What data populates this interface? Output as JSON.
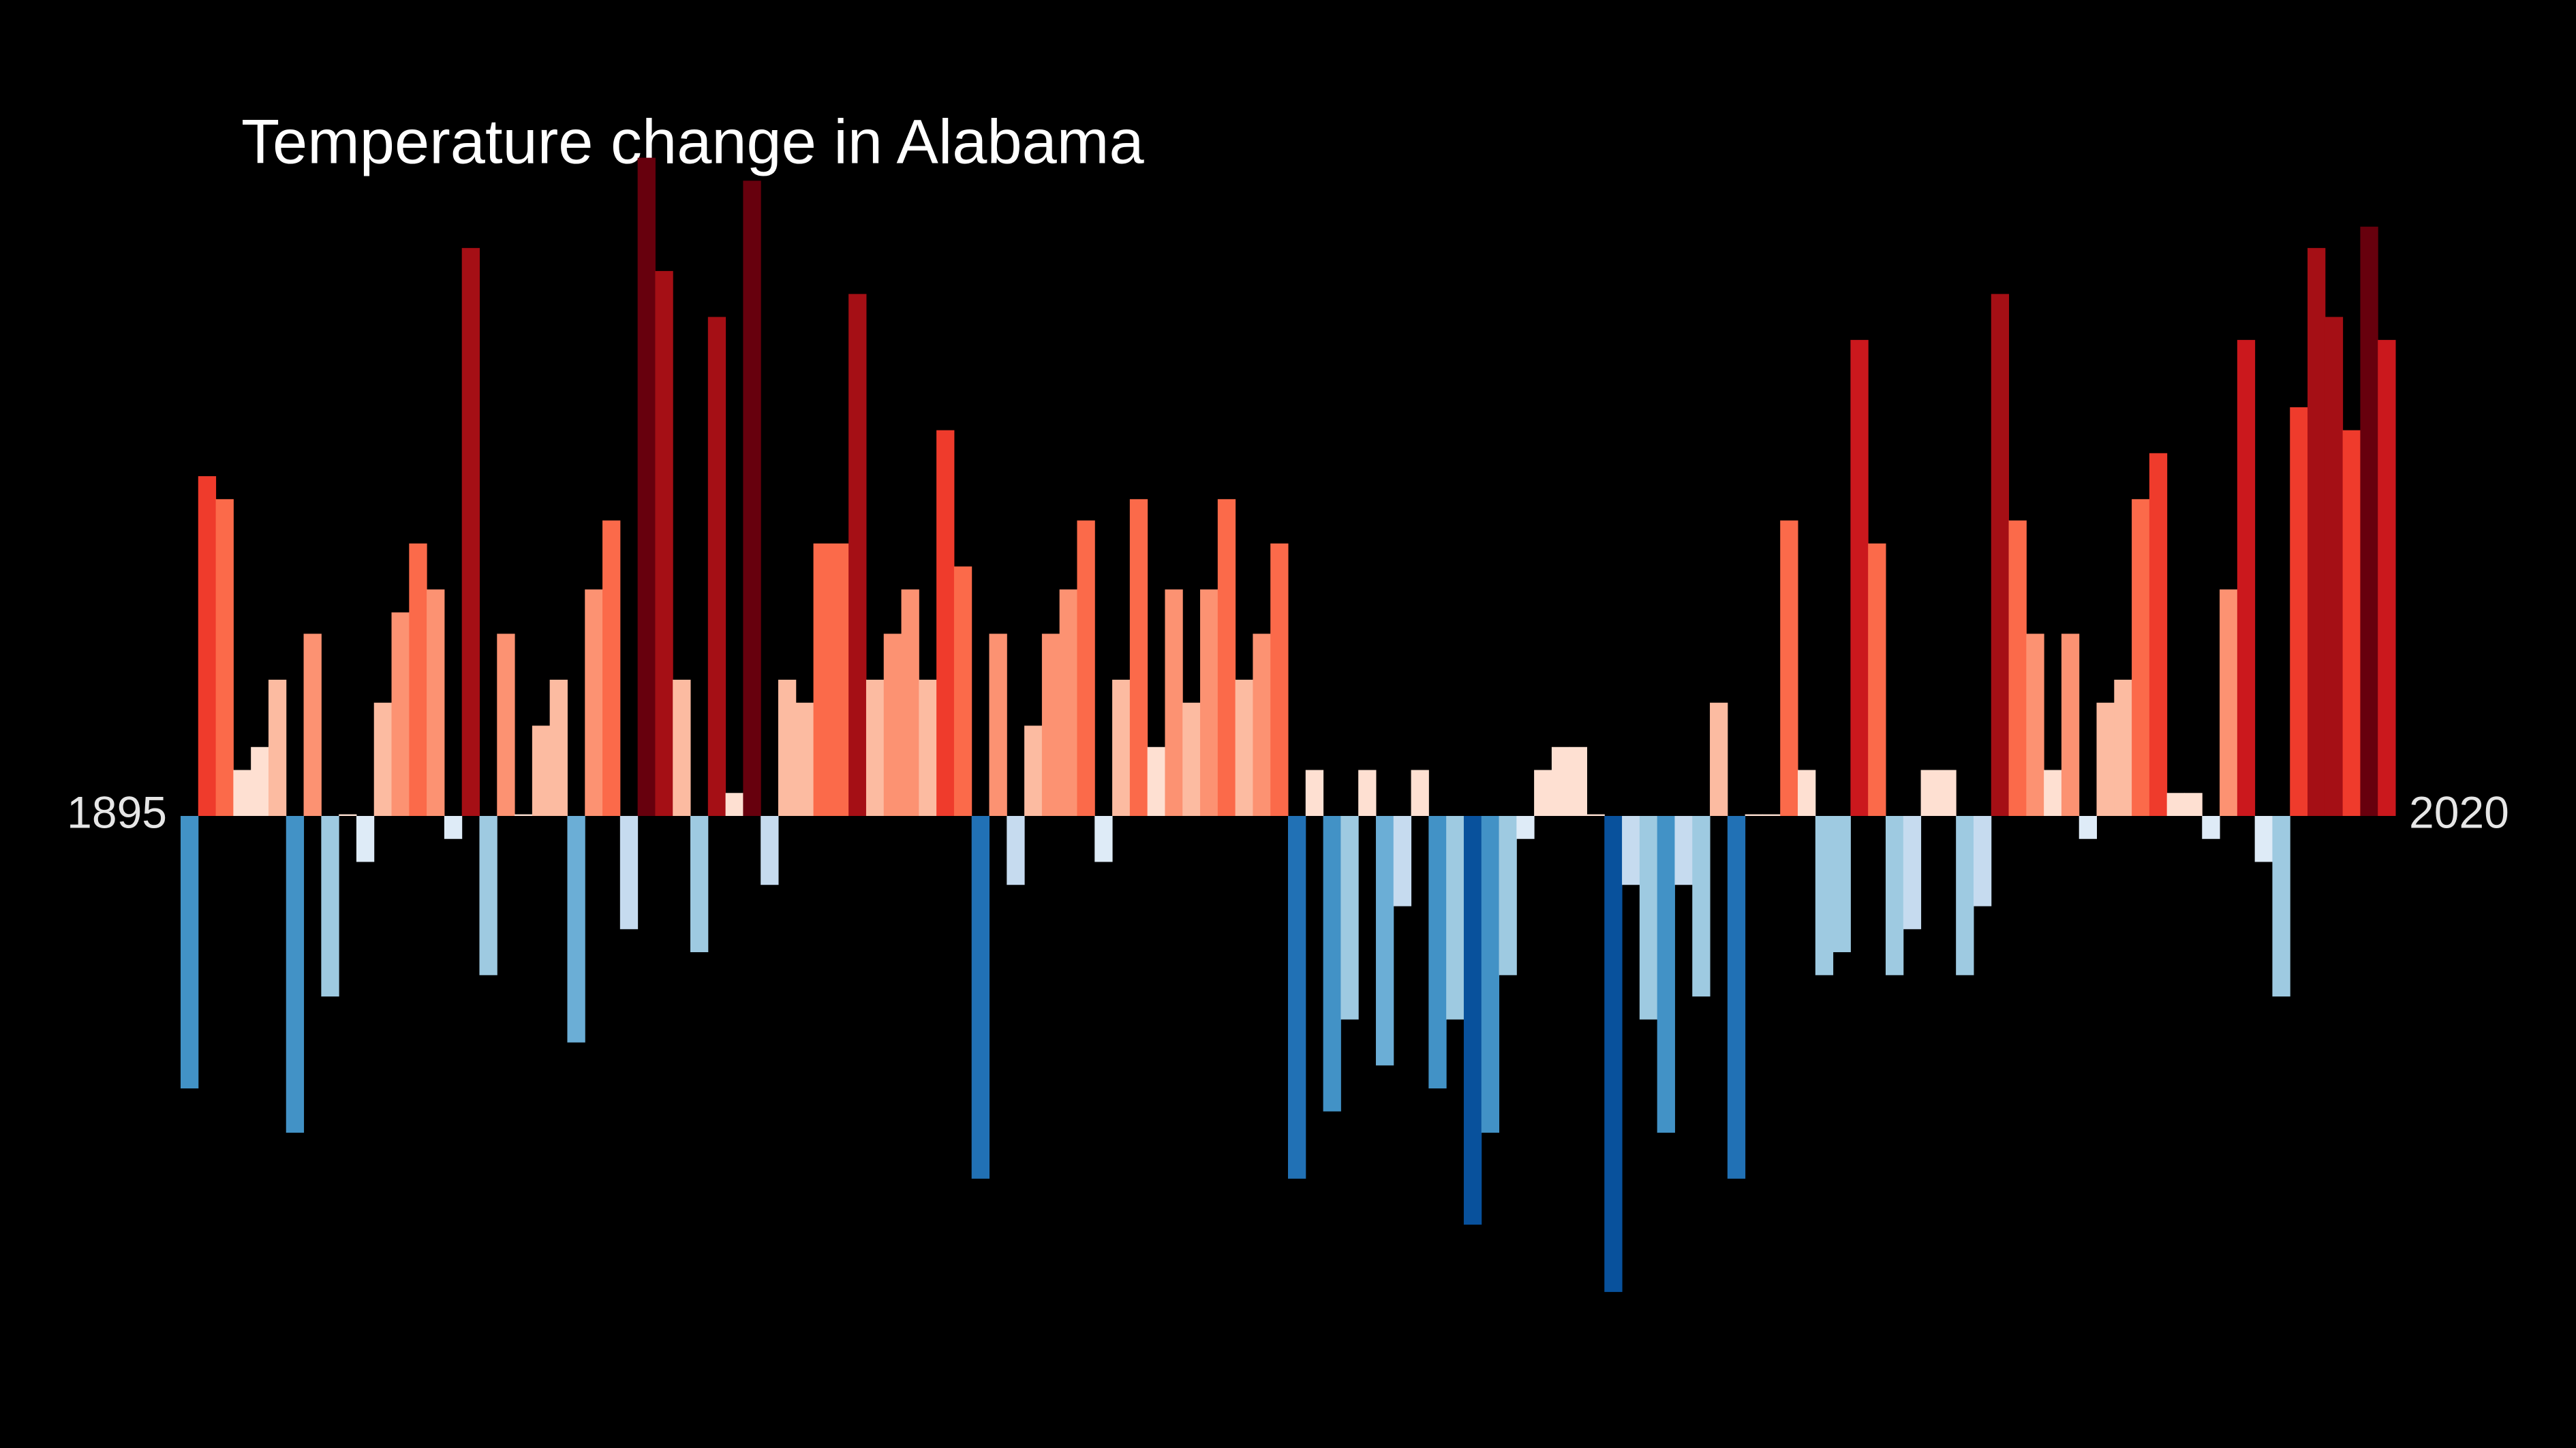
{
  "chart_data": {
    "type": "bar",
    "title": "Temperature change in Alabama",
    "categories": [
      "1895",
      null,
      null,
      null,
      null,
      null,
      null,
      null,
      null,
      null,
      null,
      null,
      null,
      null,
      null,
      null,
      null,
      null,
      null,
      null,
      null,
      null,
      null,
      null,
      null,
      null,
      null,
      null,
      null,
      null,
      null,
      null,
      null,
      null,
      null,
      null,
      null,
      null,
      null,
      null,
      null,
      null,
      null,
      null,
      null,
      null,
      null,
      null,
      null,
      null,
      null,
      null,
      null,
      null,
      null,
      null,
      null,
      null,
      null,
      null,
      null,
      null,
      null,
      null,
      null,
      null,
      null,
      null,
      null,
      null,
      null,
      null,
      null,
      null,
      null,
      null,
      null,
      null,
      null,
      null,
      null,
      null,
      null,
      null,
      null,
      null,
      null,
      null,
      null,
      null,
      null,
      null,
      null,
      null,
      null,
      null,
      null,
      null,
      null,
      null,
      null,
      null,
      null,
      null,
      null,
      null,
      null,
      null,
      null,
      null,
      null,
      null,
      null,
      null,
      null,
      null,
      null,
      null,
      null,
      null,
      null,
      null,
      null,
      null,
      null,
      "2020"
    ],
    "values": [
      -1.66,
      2.07,
      1.93,
      0.28,
      0.42,
      0.83,
      -1.93,
      1.11,
      -1.1,
      0.01,
      -0.28,
      0.69,
      1.24,
      1.66,
      1.38,
      -0.14,
      3.46,
      -0.97,
      1.11,
      0.01,
      0.55,
      0.83,
      -1.38,
      1.38,
      1.8,
      -0.69,
      4.01,
      3.32,
      0.83,
      -0.83,
      3.04,
      0.14,
      3.87,
      -0.42,
      0.83,
      0.69,
      1.66,
      1.66,
      3.18,
      0.83,
      1.11,
      1.38,
      0.83,
      2.35,
      1.52,
      -2.21,
      1.11,
      -0.42,
      0.55,
      1.11,
      1.38,
      1.8,
      -0.28,
      0.83,
      1.93,
      0.42,
      1.38,
      0.69,
      1.38,
      1.93,
      0.83,
      1.11,
      1.66,
      -2.21,
      0.28,
      -1.8,
      -1.24,
      0.28,
      -1.52,
      -0.55,
      0.28,
      -1.66,
      -1.24,
      -2.49,
      -1.93,
      -0.97,
      -0.14,
      0.28,
      0.42,
      0.42,
      0.01,
      -2.9,
      -0.42,
      -1.24,
      -1.93,
      -0.42,
      -1.1,
      0.69,
      -2.21,
      0.01,
      0.01,
      1.8,
      0.28,
      -0.97,
      -0.83,
      2.9,
      1.66,
      -0.97,
      -0.69,
      0.28,
      0.28,
      -0.97,
      -0.55,
      3.18,
      1.8,
      1.11,
      0.28,
      1.11,
      -0.14,
      0.69,
      0.83,
      1.93,
      2.21,
      0.14,
      0.14,
      -0.14,
      1.38,
      2.9,
      -0.28,
      -1.1,
      2.49,
      3.46,
      3.04,
      2.35,
      3.59,
      2.9
    ],
    "ylim": [
      -3.5,
      4.5
    ],
    "positive_colors": [
      "#fee0d2",
      "#fcbba1",
      "#fc9272",
      "#fb6a4a",
      "#ef3b2c",
      "#cb181d",
      "#a50f15",
      "#67000d"
    ],
    "negative_colors": [
      "#deebf7",
      "#c6dbef",
      "#9ecae1",
      "#6baed6",
      "#4292c6",
      "#2171b5",
      "#08519c"
    ],
    "background": "#000000"
  }
}
